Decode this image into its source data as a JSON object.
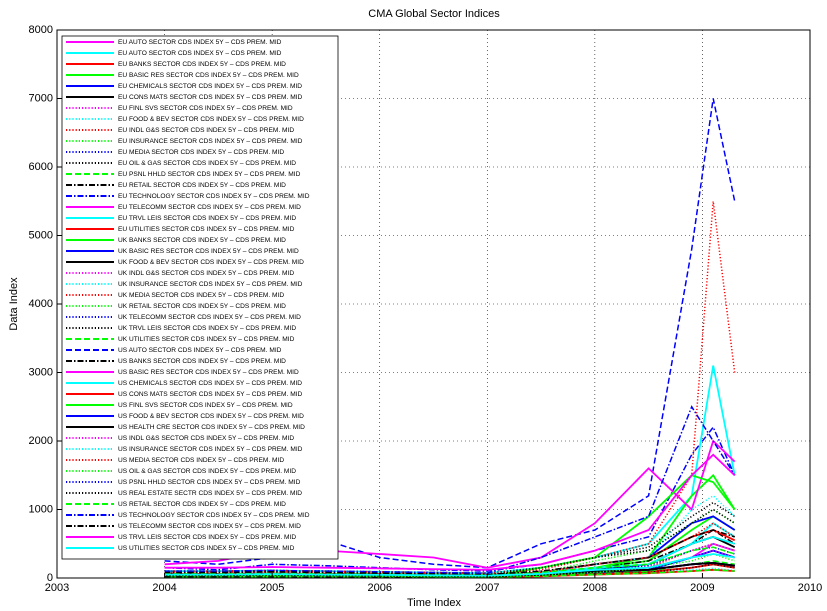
{
  "chart_data": {
    "type": "line",
    "title": "CMA Global Sector Indices",
    "xlabel": "Time Index",
    "ylabel": "Data Index",
    "xlim": [
      2003,
      2010
    ],
    "xticks": [
      2003,
      2004,
      2005,
      2006,
      2007,
      2008,
      2009,
      2010
    ],
    "ylim": [
      0,
      8000
    ],
    "yticks": [
      0,
      1000,
      2000,
      3000,
      4000,
      5000,
      6000,
      7000,
      8000
    ],
    "grid": true,
    "legend": "upper-left",
    "x": [
      2004,
      2004.5,
      2005,
      2005.5,
      2006,
      2006.5,
      2007,
      2007.5,
      2008,
      2008.5,
      2008.9,
      2009.1,
      2009.3
    ],
    "series": [
      {
        "name": "EU AUTO SECTOR CDS INDEX 5Y – CDS PREM. MID",
        "color": "#ff00ff",
        "dash": "solid",
        "values": [
          30,
          35,
          40,
          40,
          35,
          30,
          25,
          40,
          80,
          150,
          300,
          500,
          400
        ]
      },
      {
        "name": "EU AUTO SECTOR CDS INDEX 5Y – CDS PREM. MID",
        "color": "#00ffff",
        "dash": "solid",
        "values": [
          30,
          30,
          35,
          35,
          30,
          25,
          20,
          40,
          100,
          200,
          500,
          800,
          600
        ]
      },
      {
        "name": "EU BANKS SECTOR CDS INDEX 5Y – CDS PREM. MID",
        "color": "#ff0000",
        "dash": "solid",
        "values": [
          15,
          15,
          15,
          12,
          10,
          10,
          8,
          30,
          60,
          90,
          150,
          200,
          150
        ]
      },
      {
        "name": "EU BASIC RES SECTOR CDS INDEX 5Y – CDS PREM. MID",
        "color": "#00ff00",
        "dash": "solid",
        "values": [
          40,
          40,
          45,
          40,
          35,
          30,
          25,
          60,
          150,
          250,
          700,
          900,
          700
        ]
      },
      {
        "name": "EU CHEMICALS SECTOR CDS INDEX 5Y – CDS PREM. MID",
        "color": "#0000ff",
        "dash": "solid",
        "values": [
          30,
          30,
          35,
          30,
          25,
          25,
          20,
          40,
          80,
          120,
          300,
          400,
          300
        ]
      },
      {
        "name": "EU CONS MATS SECTOR CDS INDEX 5Y – CDS PREM. MID",
        "color": "#000000",
        "dash": "solid",
        "values": [
          40,
          40,
          45,
          40,
          35,
          30,
          25,
          50,
          120,
          200,
          500,
          600,
          450
        ]
      },
      {
        "name": "EU FINL SVS SECTOR CDS INDEX 5Y – CDS PREM. MID",
        "color": "#ff00ff",
        "dash": "dotted",
        "values": [
          20,
          20,
          20,
          18,
          15,
          15,
          12,
          50,
          100,
          150,
          300,
          400,
          300
        ]
      },
      {
        "name": "EU FOOD & BEV SECTOR CDS INDEX 5Y – CDS PREM. MID",
        "color": "#00ffff",
        "dash": "dotted",
        "values": [
          25,
          25,
          25,
          22,
          20,
          20,
          18,
          30,
          60,
          80,
          120,
          140,
          110
        ]
      },
      {
        "name": "EU INDL G&S SECTOR CDS INDEX 5Y – CDS PREM. MID",
        "color": "#ff0000",
        "dash": "dotted",
        "values": [
          30,
          30,
          35,
          30,
          25,
          25,
          20,
          40,
          100,
          150,
          400,
          500,
          400
        ]
      },
      {
        "name": "EU INSURANCE SECTOR CDS INDEX 5Y – CDS PREM. MID",
        "color": "#00ff00",
        "dash": "dotted",
        "values": [
          25,
          25,
          25,
          22,
          20,
          18,
          15,
          50,
          100,
          150,
          250,
          350,
          250
        ]
      },
      {
        "name": "EU MEDIA SECTOR CDS INDEX 5Y – CDS PREM. MID",
        "color": "#0000ff",
        "dash": "dotted",
        "values": [
          50,
          50,
          55,
          50,
          45,
          40,
          35,
          60,
          150,
          200,
          400,
          500,
          400
        ]
      },
      {
        "name": "EU OIL & GAS SECTOR CDS INDEX 5Y – CDS PREM. MID",
        "color": "#000000",
        "dash": "dotted",
        "values": [
          20,
          20,
          20,
          18,
          15,
          15,
          12,
          30,
          60,
          80,
          150,
          200,
          150
        ]
      },
      {
        "name": "EU PSNL HHLD SECTOR CDS INDEX 5Y – CDS PREM. MID",
        "color": "#00ff00",
        "dash": "dashed",
        "values": [
          30,
          30,
          30,
          28,
          25,
          22,
          20,
          35,
          80,
          100,
          200,
          250,
          200
        ]
      },
      {
        "name": "EU RETAIL SECTOR CDS INDEX 5Y – CDS PREM. MID",
        "color": "#000000",
        "dash": "dashdot",
        "values": [
          50,
          50,
          55,
          50,
          45,
          40,
          35,
          60,
          150,
          250,
          500,
          600,
          500
        ]
      },
      {
        "name": "EU TECHNOLOGY SECTOR CDS INDEX 5Y – CDS PREM. MID",
        "color": "#0000ff",
        "dash": "dashdot",
        "values": [
          150,
          120,
          200,
          180,
          150,
          120,
          100,
          200,
          400,
          600,
          1800,
          2200,
          1500
        ]
      },
      {
        "name": "EU TELECOMM SECTOR CDS INDEX 5Y – CDS PREM. MID",
        "color": "#ff00ff",
        "dash": "solid",
        "values": [
          50,
          50,
          55,
          50,
          45,
          40,
          35,
          50,
          90,
          120,
          200,
          220,
          180
        ]
      },
      {
        "name": "EU TRVL LEIS SECTOR CDS INDEX 5Y – CDS PREM. MID",
        "color": "#00ffff",
        "dash": "solid",
        "values": [
          100,
          100,
          110,
          100,
          90,
          80,
          70,
          150,
          300,
          500,
          1200,
          3100,
          1500
        ]
      },
      {
        "name": "EU UTILITIES SECTOR CDS INDEX 5Y – CDS PREM. MID",
        "color": "#ff0000",
        "dash": "solid",
        "values": [
          20,
          20,
          22,
          20,
          18,
          15,
          12,
          25,
          50,
          70,
          100,
          120,
          100
        ]
      },
      {
        "name": "UK BANKS SECTOR CDS INDEX 5Y – CDS PREM. MID",
        "color": "#00ff00",
        "dash": "solid",
        "values": [
          20,
          20,
          20,
          18,
          15,
          15,
          12,
          60,
          150,
          300,
          1200,
          1500,
          1000
        ]
      },
      {
        "name": "UK BASIC RES SECTOR CDS INDEX 5Y – CDS PREM. MID",
        "color": "#0000ff",
        "dash": "solid",
        "values": [
          60,
          60,
          65,
          60,
          55,
          50,
          45,
          80,
          200,
          300,
          800,
          900,
          700
        ]
      },
      {
        "name": "UK FOOD & BEV SECTOR CDS INDEX 5Y – CDS PREM. MID",
        "color": "#000000",
        "dash": "solid",
        "values": [
          40,
          40,
          45,
          40,
          35,
          30,
          25,
          45,
          90,
          120,
          200,
          220,
          180
        ]
      },
      {
        "name": "UK INDL G&S SECTOR CDS INDEX 5Y – CDS PREM. MID",
        "color": "#ff00ff",
        "dash": "dotted",
        "values": [
          40,
          40,
          45,
          40,
          35,
          30,
          25,
          50,
          120,
          180,
          400,
          500,
          400
        ]
      },
      {
        "name": "UK INSURANCE SECTOR CDS INDEX 5Y – CDS PREM. MID",
        "color": "#00ffff",
        "dash": "dotted",
        "values": [
          30,
          30,
          30,
          28,
          25,
          22,
          20,
          60,
          120,
          200,
          400,
          500,
          400
        ]
      },
      {
        "name": "UK MEDIA SECTOR CDS INDEX 5Y – CDS PREM. MID",
        "color": "#ff0000",
        "dash": "dotted",
        "values": [
          80,
          80,
          90,
          80,
          70,
          60,
          50,
          90,
          200,
          300,
          600,
          800,
          600
        ]
      },
      {
        "name": "UK RETAIL SECTOR CDS INDEX 5Y – CDS PREM. MID",
        "color": "#00ff00",
        "dash": "dotted",
        "values": [
          60,
          60,
          65,
          60,
          55,
          50,
          45,
          80,
          250,
          400,
          800,
          1000,
          800
        ]
      },
      {
        "name": "UK TELECOMM SECTOR CDS INDEX 5Y – CDS PREM. MID",
        "color": "#0000ff",
        "dash": "dotted",
        "values": [
          50,
          50,
          55,
          50,
          45,
          40,
          35,
          50,
          90,
          120,
          200,
          220,
          180
        ]
      },
      {
        "name": "UK TRVL LEIS SECTOR CDS INDEX 5Y – CDS PREM. MID",
        "color": "#000000",
        "dash": "dotted",
        "values": [
          100,
          100,
          110,
          100,
          90,
          80,
          70,
          150,
          300,
          450,
          900,
          1100,
          900
        ]
      },
      {
        "name": "UK UTILITIES SECTOR CDS INDEX 5Y – CDS PREM. MID",
        "color": "#00ff00",
        "dash": "dashed",
        "values": [
          20,
          20,
          22,
          20,
          18,
          15,
          12,
          25,
          50,
          70,
          100,
          120,
          100
        ]
      },
      {
        "name": "US AUTO SECTOR CDS INDEX 5Y – CDS PREM. MID",
        "color": "#0000ff",
        "dash": "dashed",
        "values": [
          250,
          200,
          300,
          550,
          300,
          200,
          150,
          500,
          700,
          1200,
          4800,
          7000,
          5500
        ]
      },
      {
        "name": "US BANKS SECTOR CDS INDEX 5Y – CDS PREM. MID",
        "color": "#000000",
        "dash": "dashdot",
        "values": [
          20,
          20,
          20,
          18,
          15,
          15,
          12,
          60,
          120,
          200,
          500,
          700,
          500
        ]
      },
      {
        "name": "US BASIC RES SECTOR CDS INDEX 5Y – CDS PREM. MID",
        "color": "#ff00ff",
        "dash": "solid",
        "values": [
          200,
          250,
          400,
          400,
          350,
          300,
          150,
          300,
          800,
          1600,
          1000,
          2000,
          1700
        ]
      },
      {
        "name": "US CHEMICALS SECTOR CDS INDEX 5Y – CDS PREM. MID",
        "color": "#00ffff",
        "dash": "solid",
        "values": [
          60,
          60,
          65,
          60,
          55,
          50,
          45,
          70,
          150,
          200,
          500,
          600,
          500
        ]
      },
      {
        "name": "US CONS MATS SECTOR CDS INDEX 5Y – CDS PREM. MID",
        "color": "#ff0000",
        "dash": "solid",
        "values": [
          60,
          60,
          65,
          60,
          55,
          50,
          45,
          80,
          200,
          300,
          600,
          700,
          550
        ]
      },
      {
        "name": "US FINL SVS SECTOR CDS INDEX 5Y – CDS PREM. MID",
        "color": "#00ff00",
        "dash": "solid",
        "values": [
          40,
          40,
          40,
          35,
          30,
          25,
          20,
          150,
          300,
          900,
          1500,
          1400,
          1000
        ]
      },
      {
        "name": "US FOOD & BEV SECTOR CDS INDEX 5Y – CDS PREM. MID",
        "color": "#0000ff",
        "dash": "solid",
        "values": [
          50,
          50,
          55,
          50,
          45,
          40,
          35,
          50,
          90,
          120,
          200,
          220,
          180
        ]
      },
      {
        "name": "US HEALTH CRE SECTOR CDS INDEX 5Y – CDS PREM. MID",
        "color": "#000000",
        "dash": "solid",
        "values": [
          40,
          40,
          45,
          40,
          35,
          30,
          25,
          45,
          90,
          120,
          200,
          220,
          180
        ]
      },
      {
        "name": "US INDL G&S SECTOR CDS INDEX 5Y – CDS PREM. MID",
        "color": "#ff00ff",
        "dash": "dotted",
        "values": [
          40,
          40,
          45,
          40,
          35,
          30,
          25,
          50,
          120,
          180,
          400,
          500,
          400
        ]
      },
      {
        "name": "US INSURANCE SECTOR CDS INDEX 5Y – CDS PREM. MID",
        "color": "#00ffff",
        "dash": "dotted",
        "values": [
          40,
          40,
          40,
          35,
          30,
          25,
          20,
          80,
          200,
          300,
          1000,
          1200,
          900
        ]
      },
      {
        "name": "US MEDIA SECTOR CDS INDEX 5Y – CDS PREM. MID",
        "color": "#ff0000",
        "dash": "dotted",
        "values": [
          100,
          100,
          110,
          100,
          90,
          80,
          70,
          120,
          300,
          500,
          1500,
          5500,
          3000
        ]
      },
      {
        "name": "US OIL & GAS SECTOR CDS INDEX 5Y – CDS PREM. MID",
        "color": "#00ff00",
        "dash": "dotted",
        "values": [
          40,
          40,
          40,
          35,
          30,
          25,
          20,
          40,
          80,
          150,
          300,
          350,
          300
        ]
      },
      {
        "name": "US PSNL HHLD SECTOR CDS INDEX 5Y – CDS PREM. MID",
        "color": "#0000ff",
        "dash": "dotted",
        "values": [
          50,
          50,
          55,
          50,
          45,
          40,
          35,
          60,
          120,
          180,
          400,
          450,
          350
        ]
      },
      {
        "name": "US REAL ESTATE SECTR CDS INDEX 5Y – CDS PREM. MID",
        "color": "#000000",
        "dash": "dotted",
        "values": [
          60,
          60,
          60,
          55,
          50,
          45,
          40,
          150,
          300,
          400,
          800,
          1000,
          800
        ]
      },
      {
        "name": "US RETAIL SECTOR CDS INDEX 5Y – CDS PREM. MID",
        "color": "#00ff00",
        "dash": "dashed",
        "values": [
          60,
          60,
          65,
          60,
          55,
          50,
          45,
          80,
          150,
          200,
          400,
          450,
          350
        ]
      },
      {
        "name": "US TECHNOLOGY SECTOR CDS INDEX 5Y – CDS PREM. MID",
        "color": "#0000ff",
        "dash": "dashdot",
        "values": [
          100,
          100,
          110,
          100,
          90,
          80,
          70,
          300,
          600,
          900,
          2500,
          2000,
          1500
        ]
      },
      {
        "name": "US TELECOMM SECTOR CDS INDEX 5Y – CDS PREM. MID",
        "color": "#000000",
        "dash": "dashdot",
        "values": [
          80,
          80,
          90,
          80,
          70,
          60,
          50,
          100,
          200,
          300,
          600,
          700,
          600
        ]
      },
      {
        "name": "US TRVL LEIS SECTOR CDS INDEX 5Y – CDS PREM. MID",
        "color": "#ff00ff",
        "dash": "solid",
        "values": [
          150,
          150,
          160,
          150,
          140,
          130,
          120,
          200,
          400,
          700,
          1500,
          1800,
          1500
        ]
      },
      {
        "name": "US UTILITIES SECTOR CDS INDEX 5Y – CDS PREM. MID",
        "color": "#00ffff",
        "dash": "solid",
        "values": [
          50,
          50,
          55,
          50,
          45,
          40,
          35,
          60,
          120,
          150,
          300,
          350,
          300
        ]
      }
    ]
  }
}
